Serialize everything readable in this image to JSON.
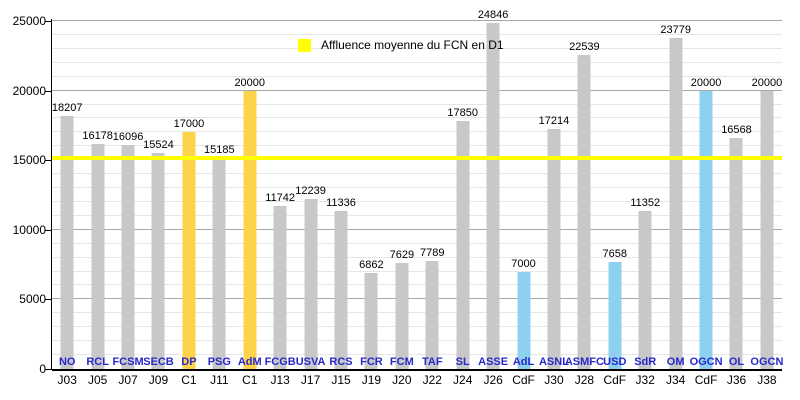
{
  "legend": {
    "label": "Affluence moyenne du FCN en D1"
  },
  "colors": {
    "bar_championnat": "#c8c8c8",
    "bar_coupe_europe": "#fcd349",
    "bar_coupe_france": "#8dd0f0",
    "average_line": "#ffff00",
    "link_label": "#2828cc",
    "grid_minor": "#e6e6e6",
    "grid_major": "#a8a8a8",
    "axis": "#000000"
  },
  "chart_data": {
    "type": "bar",
    "title": "",
    "legend_entries": [
      "Affluence moyenne du FCN en D1"
    ],
    "legend_position": "top-center",
    "ylim": [
      0,
      25000
    ],
    "yticks": [
      0,
      5000,
      10000,
      15000,
      20000,
      25000
    ],
    "grid": {
      "minor_step": 1000,
      "major_step": 5000
    },
    "average_line": {
      "value": 15190,
      "label": "Affluence moyenne du FCN en D1"
    },
    "categories": [
      "NO",
      "RCL",
      "FCSM",
      "SECB",
      "DP",
      "PSG",
      "AdM",
      "FCGB",
      "USVA",
      "RCS",
      "FCR",
      "FCM",
      "TAF",
      "SL",
      "ASSE",
      "AdL",
      "ASNL",
      "ASMFC",
      "USD",
      "SdR",
      "OM",
      "OGCN",
      "OL",
      "OGCN"
    ],
    "matchdays": [
      "J03",
      "J05",
      "J07",
      "J09",
      "C1",
      "J11",
      "C1",
      "J13",
      "J17",
      "J15",
      "J19",
      "J20",
      "J22",
      "J24",
      "J26",
      "CdF",
      "J30",
      "J28",
      "CdF",
      "J32",
      "J34",
      "CdF",
      "J36",
      "J38"
    ],
    "values": [
      18207,
      16178,
      16096,
      15524,
      17000,
      15185,
      20000,
      11742,
      12239,
      11336,
      6862,
      7629,
      7789,
      17850,
      24846,
      7000,
      17214,
      22539,
      7658,
      11352,
      23779,
      20000,
      16568,
      20000
    ],
    "bars": [
      {
        "opponent": "NO",
        "matchday": "J03",
        "value": 18207,
        "category": "championnat"
      },
      {
        "opponent": "RCL",
        "matchday": "J05",
        "value": 16178,
        "category": "championnat"
      },
      {
        "opponent": "FCSM",
        "matchday": "J07",
        "value": 16096,
        "category": "championnat"
      },
      {
        "opponent": "SECB",
        "matchday": "J09",
        "value": 15524,
        "category": "championnat"
      },
      {
        "opponent": "DP",
        "matchday": "C1",
        "value": 17000,
        "category": "coupe_europe"
      },
      {
        "opponent": "PSG",
        "matchday": "J11",
        "value": 15185,
        "category": "championnat"
      },
      {
        "opponent": "AdM",
        "matchday": "C1",
        "value": 20000,
        "category": "coupe_europe"
      },
      {
        "opponent": "FCGB",
        "matchday": "J13",
        "value": 11742,
        "category": "championnat"
      },
      {
        "opponent": "USVA",
        "matchday": "J17",
        "value": 12239,
        "category": "championnat"
      },
      {
        "opponent": "RCS",
        "matchday": "J15",
        "value": 11336,
        "category": "championnat"
      },
      {
        "opponent": "FCR",
        "matchday": "J19",
        "value": 6862,
        "category": "championnat"
      },
      {
        "opponent": "FCM",
        "matchday": "J20",
        "value": 7629,
        "category": "championnat"
      },
      {
        "opponent": "TAF",
        "matchday": "J22",
        "value": 7789,
        "category": "championnat"
      },
      {
        "opponent": "SL",
        "matchday": "J24",
        "value": 17850,
        "category": "championnat"
      },
      {
        "opponent": "ASSE",
        "matchday": "J26",
        "value": 24846,
        "category": "championnat"
      },
      {
        "opponent": "AdL",
        "matchday": "CdF",
        "value": 7000,
        "category": "coupe_france"
      },
      {
        "opponent": "ASNL",
        "matchday": "J30",
        "value": 17214,
        "category": "championnat"
      },
      {
        "opponent": "ASMFC",
        "matchday": "J28",
        "value": 22539,
        "category": "championnat"
      },
      {
        "opponent": "USD",
        "matchday": "CdF",
        "value": 7658,
        "category": "coupe_france"
      },
      {
        "opponent": "SdR",
        "matchday": "J32",
        "value": 11352,
        "category": "championnat"
      },
      {
        "opponent": "OM",
        "matchday": "J34",
        "value": 23779,
        "category": "championnat"
      },
      {
        "opponent": "OGCN",
        "matchday": "CdF",
        "value": 20000,
        "category": "coupe_france"
      },
      {
        "opponent": "OL",
        "matchday": "J36",
        "value": 16568,
        "category": "championnat"
      },
      {
        "opponent": "OGCN",
        "matchday": "J38",
        "value": 20000,
        "category": "championnat"
      }
    ]
  }
}
